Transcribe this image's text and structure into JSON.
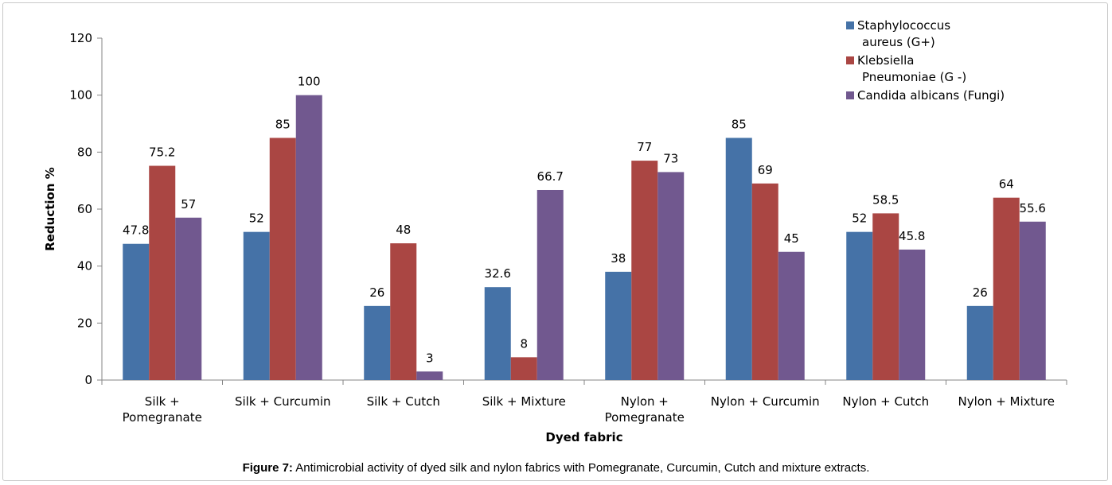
{
  "chart_data": {
    "type": "bar",
    "xlabel": "Dyed fabric",
    "ylabel": "Reduction %",
    "ylim": [
      0,
      120
    ],
    "yticks": [
      "0",
      "20",
      "40",
      "60",
      "80",
      "100",
      "120"
    ],
    "grid": false,
    "legend_position": "top-right",
    "categories": [
      [
        "Silk +",
        "Pomegranate"
      ],
      [
        "Silk + Curcumin"
      ],
      [
        "Silk + Cutch"
      ],
      [
        "Silk + Mixture"
      ],
      [
        "Nylon +",
        "Pomegranate"
      ],
      [
        "Nylon + Curcumin"
      ],
      [
        "Nylon + Cutch"
      ],
      [
        "Nylon + Mixture"
      ]
    ],
    "series": [
      {
        "name_lines": [
          "Staphylococcus",
          "aureus (G+)"
        ],
        "color": "#4572a7",
        "values": [
          47.8,
          52,
          26,
          32.6,
          38,
          85,
          52,
          26
        ],
        "labels": [
          "47.8",
          "52",
          "26",
          "32.6",
          "38",
          "85",
          "52",
          "26"
        ]
      },
      {
        "name_lines": [
          "Klebsiella",
          "Pneumoniae (G -)"
        ],
        "color": "#aa4643",
        "values": [
          75.2,
          85,
          48,
          8,
          77,
          69,
          58.5,
          64
        ],
        "labels": [
          "75.2",
          "85",
          "48",
          "8",
          "77",
          "69",
          "58.5",
          "64"
        ]
      },
      {
        "name_lines": [
          "Candida  albicans (Fungi)"
        ],
        "color": "#71588f",
        "values": [
          57,
          100,
          3,
          66.7,
          73,
          45,
          45.8,
          55.6
        ],
        "labels": [
          "57",
          "100",
          "3",
          "66.7",
          "73",
          "45",
          "45.8",
          "55.6"
        ]
      }
    ]
  },
  "caption": {
    "label": "Figure 7:",
    "text": " Antimicrobial activity of dyed silk and nylon fabrics with Pomegranate, Curcumin, Cutch and mixture extracts."
  }
}
